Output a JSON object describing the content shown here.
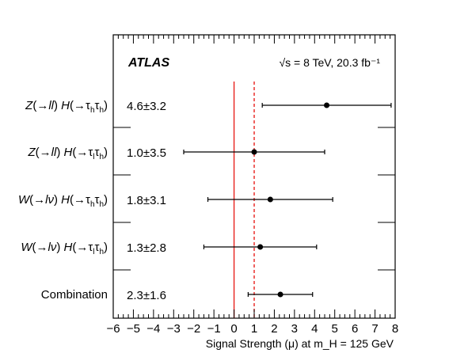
{
  "chart_data": {
    "type": "scatter",
    "experiment": "ATLAS",
    "energy_label": "√s = 8 TeV, 20.3 fb⁻¹",
    "xlabel": "Signal Strength (μ) at m_H = 125 GeV",
    "xlim": [
      -6,
      8
    ],
    "xticks": [
      -6,
      -5,
      -4,
      -3,
      -2,
      -1,
      0,
      1,
      2,
      3,
      4,
      5,
      6,
      7,
      8
    ],
    "reference_lines": [
      {
        "value": 0,
        "style": "solid",
        "color": "#e8201c"
      },
      {
        "value": 1,
        "style": "dashed",
        "color": "#e8201c"
      }
    ],
    "points": [
      {
        "label": "Z(→ll) H(→τhτh)",
        "value_text": "4.6±3.2",
        "mu": 4.6,
        "err_lo": 3.2,
        "err_hi": 3.2
      },
      {
        "label": "Z(→ll) H(→τlτh)",
        "value_text": "1.0±3.5",
        "mu": 1.0,
        "err_lo": 3.5,
        "err_hi": 3.5
      },
      {
        "label": "W(→lν) H(→τhτh)",
        "value_text": "1.8±3.1",
        "mu": 1.8,
        "err_lo": 3.1,
        "err_hi": 3.1
      },
      {
        "label": "W(→lν) H(→τlτh)",
        "value_text": "1.3±2.8",
        "mu": 1.3,
        "err_lo": 2.8,
        "err_hi": 2.8
      },
      {
        "label": "Combination",
        "value_text": "2.3±1.6",
        "mu": 2.3,
        "err_lo": 1.6,
        "err_hi": 1.6
      }
    ],
    "colors": {
      "axis": "#000000",
      "reference": "#e8201c",
      "marker": "#000000"
    }
  }
}
